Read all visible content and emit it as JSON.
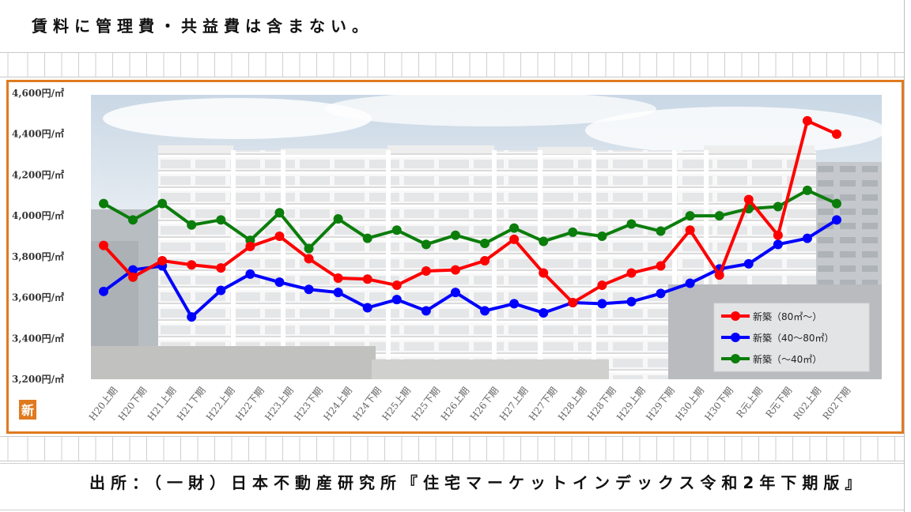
{
  "note": "賃料に管理費・共益費は含まない。",
  "source": "出所：（一財）日本不動産研究所『住宅マーケットインデックス令和2年下期版』",
  "logo_text": "新",
  "colors": {
    "frame": "#e07a1f"
  },
  "chart_data": {
    "type": "line",
    "categories": [
      "H20上期",
      "H20下期",
      "H21上期",
      "H21下期",
      "H22上期",
      "H22下期",
      "H23上期",
      "H23下期",
      "H24上期",
      "H24下期",
      "H25上期",
      "H25下期",
      "H26上期",
      "H26下期",
      "H27上期",
      "H27下期",
      "H28上期",
      "H28下期",
      "H29上期",
      "H29下期",
      "H30上期",
      "H30下期",
      "R元上期",
      "R元下期",
      "R02上期",
      "R02下期"
    ],
    "ylim": [
      3200,
      4600
    ],
    "yticks": [
      {
        "value": 4600,
        "label": "4,600円/㎡"
      },
      {
        "value": 4400,
        "label": "4,400円/㎡"
      },
      {
        "value": 4200,
        "label": "4,200円/㎡"
      },
      {
        "value": 4000,
        "label": "4,000円/㎡"
      },
      {
        "value": 3800,
        "label": "3,800円/㎡"
      },
      {
        "value": 3600,
        "label": "3,600円/㎡"
      },
      {
        "value": 3400,
        "label": "3,400円/㎡"
      },
      {
        "value": 3200,
        "label": "3,200円/㎡"
      }
    ],
    "series": [
      {
        "name": "新築（80㎡～）",
        "color": "#ff0000",
        "values": [
          3855,
          3700,
          3780,
          3760,
          3745,
          3850,
          3900,
          3790,
          3695,
          3690,
          3660,
          3730,
          3735,
          3780,
          3885,
          3720,
          3575,
          3660,
          3720,
          3755,
          3930,
          3710,
          4080,
          3905,
          4465,
          4400
        ]
      },
      {
        "name": "新築（40～80㎡）",
        "color": "#0000ff",
        "values": [
          3630,
          3735,
          3755,
          3505,
          3635,
          3715,
          3675,
          3640,
          3625,
          3550,
          3590,
          3535,
          3625,
          3535,
          3570,
          3525,
          3575,
          3570,
          3580,
          3620,
          3670,
          3740,
          3765,
          3860,
          3890,
          3980
        ]
      },
      {
        "name": "新築（～40㎡）",
        "color": "#0b7d0b",
        "values": [
          4060,
          3980,
          4060,
          3955,
          3980,
          3880,
          4015,
          3840,
          3985,
          3890,
          3930,
          3860,
          3905,
          3865,
          3940,
          3875,
          3920,
          3900,
          3960,
          3925,
          4000,
          4000,
          4035,
          4045,
          4125,
          4060
        ]
      }
    ],
    "legend": "bottom-right",
    "grid": false
  }
}
